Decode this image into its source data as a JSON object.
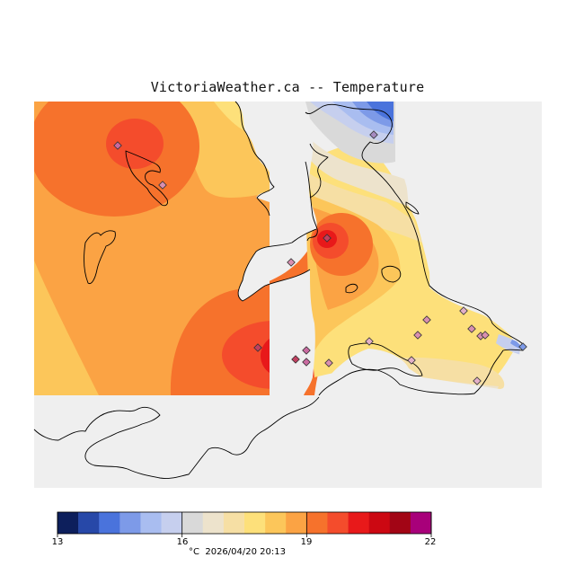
{
  "title": "VictoriaWeather.ca -- Temperature",
  "colorbar": {
    "min_label": "13",
    "tick_labels": [
      "13",
      "16",
      "19",
      "22"
    ],
    "tick_values": [
      13,
      16,
      19,
      22
    ],
    "range": [
      13,
      22
    ],
    "colors": [
      "#0d1f5c",
      "#2748a8",
      "#4a73dc",
      "#7d9ae8",
      "#a9bdf0",
      "#c6cfee",
      "#d9d9d9",
      "#ede3cc",
      "#f6dfa4",
      "#fde07a",
      "#fcc65a",
      "#fba344",
      "#f6722c",
      "#f44c2c",
      "#e8191a",
      "#cc0812",
      "#a20515",
      "#a8007a"
    ],
    "unit_and_time": "°C  2026/04/20 20:13"
  },
  "map": {
    "description_colors": {
      "background_gray": "#efefef",
      "water": "#efefef",
      "coast": "#000000",
      "station_fill": "#c96aa0"
    },
    "station_count": 20
  }
}
